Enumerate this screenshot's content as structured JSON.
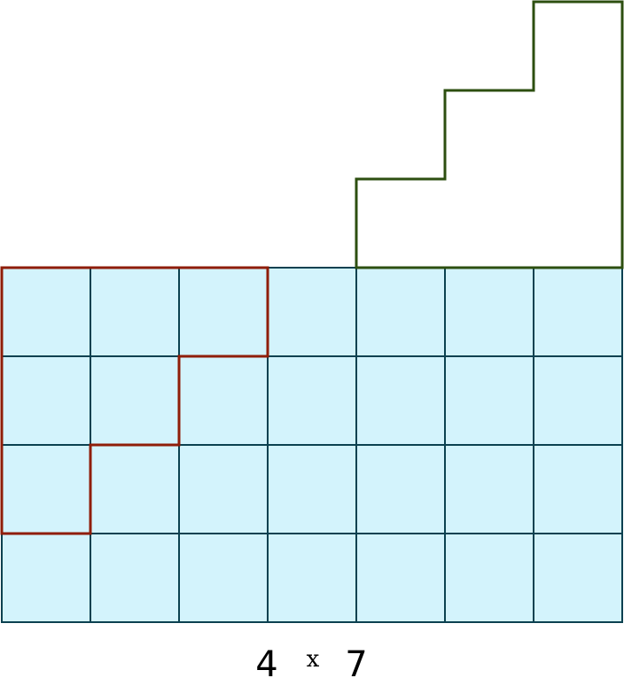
{
  "grid": {
    "rows": 4,
    "cols": 7,
    "fill_color": "#d3f3fc",
    "line_color": "#0b4150"
  },
  "red_staircase": {
    "color": "#8f1d08",
    "column_heights": [
      3,
      2,
      1
    ]
  },
  "green_staircase": {
    "color": "#2d4f10",
    "column_heights": [
      1,
      2,
      3
    ]
  },
  "dimension_label": {
    "rows_value": "4",
    "operator": "x",
    "cols_value": "7"
  }
}
